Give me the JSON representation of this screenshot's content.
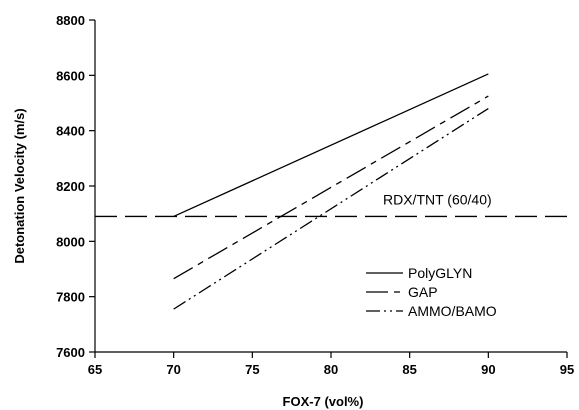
{
  "chart_data": {
    "type": "line",
    "title": "",
    "xlabel": "FOX-7 (vol%)",
    "ylabel": "Detonation Velocity (m/s)",
    "xlim": [
      65,
      95
    ],
    "ylim": [
      7600,
      8800
    ],
    "x_ticks": [
      65,
      70,
      75,
      80,
      85,
      90,
      95
    ],
    "y_ticks": [
      7600,
      7800,
      8000,
      8200,
      8400,
      8600,
      8800
    ],
    "grid": false,
    "legend_position": "bottom-right",
    "series": [
      {
        "name": "PolyGLYN",
        "x": [
          70,
          90
        ],
        "y": [
          8090,
          8605
        ],
        "dash": "solid"
      },
      {
        "name": "GAP",
        "x": [
          70,
          90
        ],
        "y": [
          7865,
          8525
        ],
        "dash": "dash"
      },
      {
        "name": "AMMO/BAMO",
        "x": [
          70,
          90
        ],
        "y": [
          7755,
          8480
        ],
        "dash": "dashdotdot"
      }
    ],
    "reference_lines": [
      {
        "label": "RDX/TNT (60/40)",
        "y": 8090,
        "dash": "longdash"
      }
    ]
  }
}
